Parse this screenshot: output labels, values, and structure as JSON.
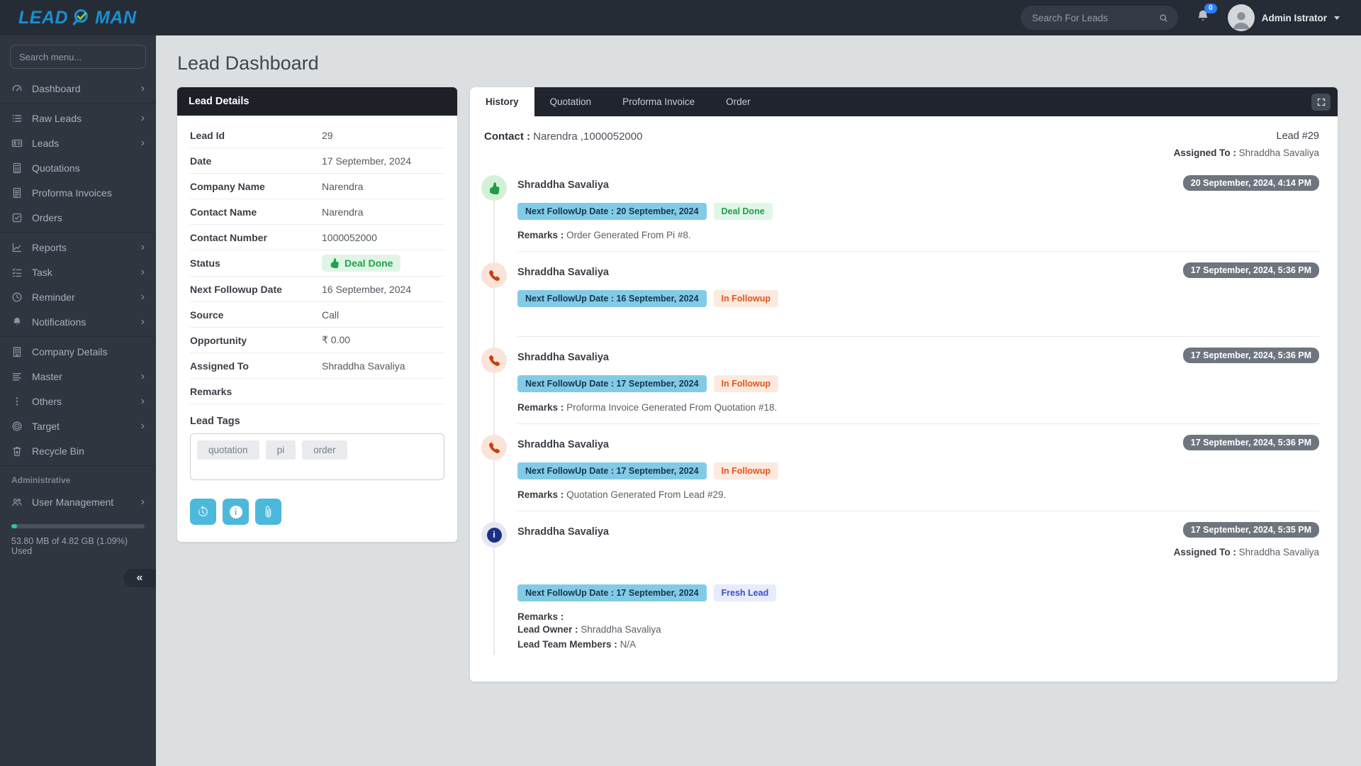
{
  "brand": {
    "name_left": "LEAD",
    "name_right": "MAN"
  },
  "topbar": {
    "search_placeholder": "Search For Leads",
    "notification_count": "0",
    "user_name": "Admin Istrator"
  },
  "icons": {
    "chevron": "›",
    "collapse": "«",
    "info_glyph": "i"
  },
  "sidebar": {
    "menu_search_placeholder": "Search menu...",
    "items": [
      {
        "label": "Dashboard",
        "icon": "gauge"
      },
      {
        "label": "Raw Leads",
        "icon": "list"
      },
      {
        "label": "Leads",
        "icon": "id-card"
      },
      {
        "label": "Quotations",
        "icon": "calculator"
      },
      {
        "label": "Proforma Invoices",
        "icon": "invoice"
      },
      {
        "label": "Orders",
        "icon": "check-square"
      },
      {
        "label": "Reports",
        "icon": "chart-line"
      },
      {
        "label": "Task",
        "icon": "tasks"
      },
      {
        "label": "Reminder",
        "icon": "clock"
      },
      {
        "label": "Notifications",
        "icon": "bell"
      },
      {
        "label": "Company Details",
        "icon": "building"
      },
      {
        "label": "Master",
        "icon": "list-lines"
      },
      {
        "label": "Others",
        "icon": "ellipsis-vertical"
      },
      {
        "label": "Target",
        "icon": "bullseye"
      },
      {
        "label": "Recycle Bin",
        "icon": "trash-restore"
      },
      {
        "label": "User Management",
        "icon": "users"
      }
    ],
    "section_label": "Administrative",
    "storage_text": "53.80 MB of 4.82 GB (1.09%) Used",
    "storage_percent_used": 1.09
  },
  "page": {
    "title": "Lead Dashboard"
  },
  "lead_details": {
    "header": "Lead Details",
    "rows": [
      {
        "label": "Lead Id",
        "value": "29"
      },
      {
        "label": "Date",
        "value": "17 September, 2024"
      },
      {
        "label": "Company Name",
        "value": "Narendra"
      },
      {
        "label": "Contact Name",
        "value": "Narendra"
      },
      {
        "label": "Contact Number",
        "value": "1000052000"
      },
      {
        "label": "Status",
        "value": "Deal Done"
      },
      {
        "label": "Next Followup Date",
        "value": "16 September, 2024"
      },
      {
        "label": "Source",
        "value": "Call"
      },
      {
        "label": "Opportunity",
        "value": "₹ 0.00"
      },
      {
        "label": "Assigned To",
        "value": "Shraddha Savaliya"
      },
      {
        "label": "Remarks",
        "value": ""
      }
    ],
    "tags_label": "Lead Tags",
    "tags": [
      "quotation",
      "pi",
      "order"
    ]
  },
  "panel": {
    "tabs": [
      {
        "label": "History",
        "active": true
      },
      {
        "label": "Quotation",
        "active": false
      },
      {
        "label": "Proforma Invoice",
        "active": false
      },
      {
        "label": "Order",
        "active": false
      }
    ],
    "contact_label": "Contact :",
    "contact_value": "Narendra ,1000052000",
    "lead_ref": "Lead #29",
    "assigned_label": "Assigned To :",
    "assigned_value": "Shraddha Savaliya",
    "timeline": [
      {
        "icon": "thumbs-up",
        "name": "Shraddha Savaliya",
        "followup": "Next FollowUp Date : 20 September, 2024",
        "status": "Deal Done",
        "status_type": "success",
        "remarks_label": "Remarks :",
        "remarks": "Order Generated From Pi #8.",
        "timestamp": "20 September, 2024, 4:14 PM"
      },
      {
        "icon": "phone",
        "name": "Shraddha Savaliya",
        "followup": "Next FollowUp Date : 16 September, 2024",
        "status": "In Followup",
        "status_type": "warning",
        "timestamp": "17 September, 2024, 5:36 PM"
      },
      {
        "icon": "phone",
        "name": "Shraddha Savaliya",
        "followup": "Next FollowUp Date : 17 September, 2024",
        "status": "In Followup",
        "status_type": "warning",
        "remarks_label": "Remarks :",
        "remarks": "Proforma Invoice Generated From Quotation #18.",
        "timestamp": "17 September, 2024, 5:36 PM"
      },
      {
        "icon": "phone",
        "name": "Shraddha Savaliya",
        "followup": "Next FollowUp Date : 17 September, 2024",
        "status": "In Followup",
        "status_type": "warning",
        "remarks_label": "Remarks :",
        "remarks": "Quotation Generated From Lead #29.",
        "timestamp": "17 September, 2024, 5:36 PM"
      },
      {
        "icon": "info",
        "name": "Shraddha Savaliya",
        "followup": "Next FollowUp Date : 17 September, 2024",
        "status": "Fresh Lead",
        "status_type": "info",
        "timestamp": "17 September, 2024, 5:35 PM",
        "assigned_label": "Assigned To :",
        "assigned_value": "Shraddha Savaliya",
        "remarks_label": "Remarks :",
        "remarks": "",
        "owner_label": "Lead Owner :",
        "owner_value": "Shraddha Savaliya",
        "team_label": "Lead Team Members :",
        "team_value": "N/A"
      }
    ]
  },
  "colors": {
    "topbar_bg": "#262c36",
    "sidebar_bg": "#2f3640",
    "card_header_bg": "#1d2127",
    "accent_blue": "#4cb9dc",
    "logo_blue": "#1a8fd1",
    "logo_green": "#8dc63f",
    "followup_badge_bg": "#82cbe7",
    "timestamp_badge_bg": "#6e757e",
    "success": "#1d9e45",
    "warning": "#e4551c",
    "info": "#3a50c8",
    "progress_fill": "#2cc5a0",
    "notification_badge": "#2d7ff9"
  }
}
